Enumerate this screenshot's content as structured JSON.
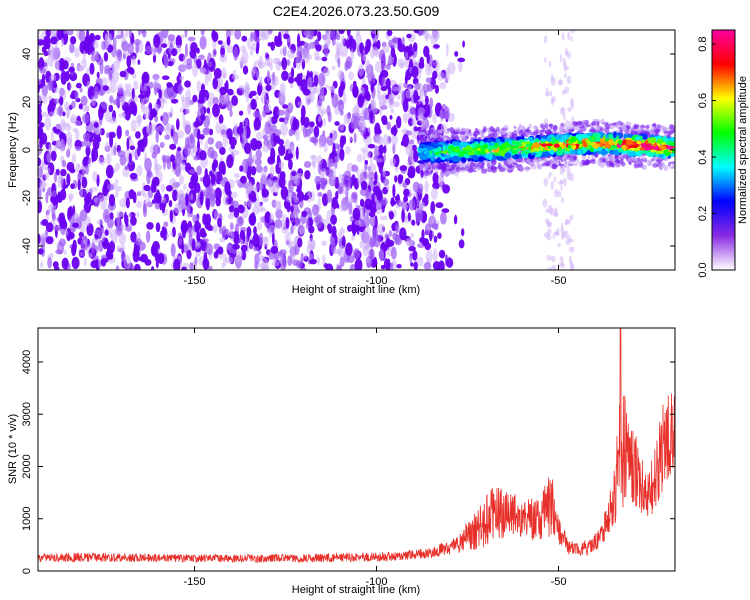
{
  "chart_data": [
    {
      "type": "heatmap",
      "title": "C2E4.2026.073.23.50.G09",
      "xlabel": "Height of straight line (km)",
      "ylabel": "Frequency (Hz)",
      "xlim": [
        -193,
        -18
      ],
      "ylim": [
        -50,
        50
      ],
      "xticks": [
        -150,
        -100,
        -50
      ],
      "yticks": [
        -40,
        -20,
        0,
        20,
        40
      ],
      "colorbar": {
        "label": "Normalized spectral amplitude",
        "range": [
          0,
          0.85
        ],
        "ticks": [
          0.0,
          0.2,
          0.4,
          0.6,
          0.8
        ],
        "colors": [
          "#ffffff",
          "#8a2be2",
          "#0000ff",
          "#00ffff",
          "#00ff00",
          "#ffff00",
          "#ff0000",
          "#ff00a0"
        ]
      },
      "features": {
        "noise_region_x": [
          -193,
          -88
        ],
        "noise_amplitude": 0.1,
        "signal_band_x": [
          -88,
          -18
        ],
        "signal_center_freq": [
          [
            -88,
            -1
          ],
          [
            -70,
            0
          ],
          [
            -60,
            1
          ],
          [
            -50,
            2
          ],
          [
            -40,
            3
          ],
          [
            -30,
            2
          ],
          [
            -18,
            1
          ]
        ],
        "signal_peak_amplitude": 0.85
      }
    },
    {
      "type": "line",
      "xlabel": "Height of straight line (km)",
      "ylabel": "SNR (10 * v/v)",
      "xlim": [
        -193,
        -18
      ],
      "ylim": [
        0,
        4650
      ],
      "xticks": [
        -150,
        -100,
        -50
      ],
      "yticks": [
        0,
        1000,
        2000,
        3000,
        4000
      ],
      "series": [
        {
          "name": "SNR",
          "color": "#e8302a",
          "envelope": [
            {
              "x": -193,
              "base": 230,
              "spread": 160
            },
            {
              "x": -180,
              "base": 240,
              "spread": 180
            },
            {
              "x": -150,
              "base": 220,
              "spread": 150
            },
            {
              "x": -120,
              "base": 220,
              "spread": 160
            },
            {
              "x": -95,
              "base": 250,
              "spread": 180
            },
            {
              "x": -85,
              "base": 320,
              "spread": 200
            },
            {
              "x": -78,
              "base": 450,
              "spread": 350
            },
            {
              "x": -72,
              "base": 700,
              "spread": 800
            },
            {
              "x": -68,
              "base": 900,
              "spread": 1100
            },
            {
              "x": -64,
              "base": 1000,
              "spread": 900
            },
            {
              "x": -60,
              "base": 900,
              "spread": 800
            },
            {
              "x": -55,
              "base": 850,
              "spread": 900
            },
            {
              "x": -52,
              "base": 1100,
              "spread": 1300
            },
            {
              "x": -50,
              "base": 700,
              "spread": 500
            },
            {
              "x": -47,
              "base": 400,
              "spread": 300
            },
            {
              "x": -42,
              "base": 400,
              "spread": 300
            },
            {
              "x": -38,
              "base": 600,
              "spread": 500
            },
            {
              "x": -35,
              "base": 1200,
              "spread": 1000
            },
            {
              "x": -33,
              "base": 2000,
              "spread": 2600
            },
            {
              "x": -30,
              "base": 1800,
              "spread": 1800
            },
            {
              "x": -27,
              "base": 1400,
              "spread": 1200
            },
            {
              "x": -24,
              "base": 1500,
              "spread": 1200
            },
            {
              "x": -21,
              "base": 2200,
              "spread": 1700
            },
            {
              "x": -18,
              "base": 2500,
              "spread": 1800
            }
          ],
          "peak": {
            "x": -33,
            "y": 4650
          }
        }
      ]
    }
  ]
}
